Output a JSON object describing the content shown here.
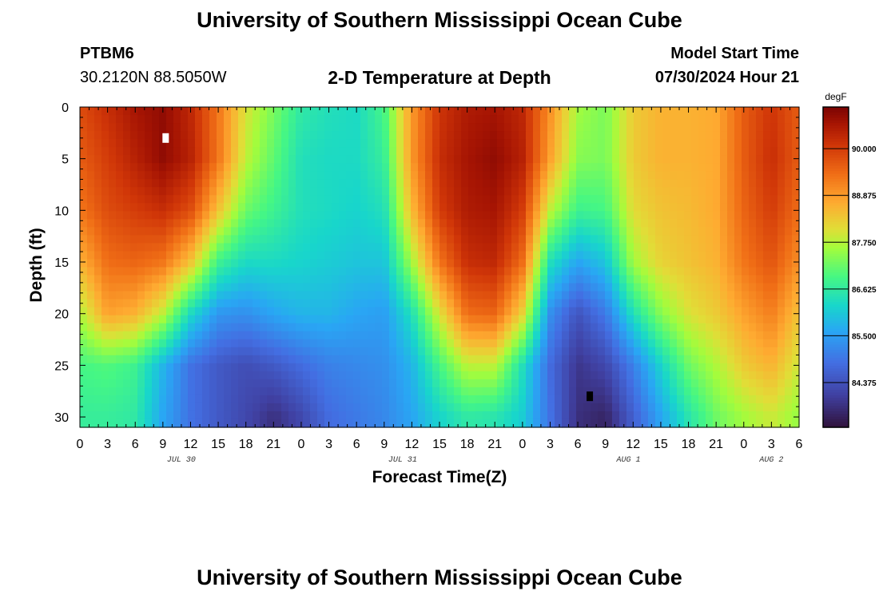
{
  "header": {
    "title": "University of Southern Mississippi Ocean Cube",
    "station_id": "PTBM6",
    "station_coords": "30.2120N  88.5050W",
    "subtitle": "2-D Temperature at Depth",
    "model_start_label": "Model Start Time",
    "model_start_value": "07/30/2024 Hour 21"
  },
  "footer": {
    "title": "University of Southern Mississippi Ocean Cube"
  },
  "chart_data": {
    "type": "heatmap",
    "title": "2-D Temperature at Depth",
    "xlabel": "Forecast Time(Z)",
    "ylabel": "Depth (ft)",
    "x_range_hours": [
      0,
      78
    ],
    "y_range_ft": [
      0,
      31
    ],
    "y_inverted": true,
    "x_tick_labels": [
      "0",
      "3",
      "6",
      "9",
      "12",
      "15",
      "18",
      "21",
      "0",
      "3",
      "6",
      "9",
      "12",
      "15",
      "18",
      "21",
      "0",
      "3",
      "6",
      "9",
      "12",
      "15",
      "18",
      "21",
      "0",
      "3",
      "6"
    ],
    "y_tick_labels": [
      "0",
      "5",
      "10",
      "15",
      "20",
      "25",
      "30"
    ],
    "y_tick_values": [
      0,
      5,
      10,
      15,
      20,
      25,
      30
    ],
    "date_labels": [
      {
        "text": "JUL 30",
        "hour": 11
      },
      {
        "text": "JUL 31",
        "hour": 35
      },
      {
        "text": "AUG 1",
        "hour": 59.5
      },
      {
        "text": "AUG 2",
        "hour": 75
      }
    ],
    "colorbar": {
      "unit": "degF",
      "min": 83.3,
      "max": 91.0,
      "tick_labels": [
        "84.375",
        "85.500",
        "86.625",
        "87.750",
        "88.875",
        "90.000"
      ],
      "tick_values": [
        84.375,
        85.5,
        86.625,
        87.75,
        88.875,
        90.0
      ]
    },
    "extrema_markers": [
      {
        "kind": "max",
        "hour": 9.3,
        "depth_ft": 3.0,
        "color": "#ffffff"
      },
      {
        "kind": "min",
        "hour": 55.3,
        "depth_ft": 28.0,
        "color": "#000000"
      }
    ],
    "time_hours": [
      0,
      3,
      6,
      9,
      12,
      15,
      18,
      21,
      24,
      27,
      30,
      33,
      36,
      39,
      42,
      45,
      48,
      51,
      54,
      57,
      60,
      63,
      66,
      69,
      72,
      75,
      78
    ],
    "depth_ft": [
      0,
      5,
      10,
      15,
      20,
      25,
      30
    ],
    "temperature_degF": [
      [
        89.8,
        90.2,
        90.6,
        90.8,
        90.3,
        89.3,
        88.0,
        87.3,
        86.6,
        86.4,
        86.3,
        86.9,
        88.9,
        90.1,
        90.5,
        90.6,
        90.3,
        89.0,
        87.6,
        87.3,
        88.3,
        88.6,
        88.6,
        88.7,
        89.6,
        90.1,
        89.6
      ],
      [
        89.6,
        90.0,
        90.4,
        90.8,
        90.4,
        89.3,
        87.8,
        87.1,
        86.4,
        86.3,
        86.3,
        86.7,
        88.9,
        90.2,
        90.6,
        90.8,
        90.4,
        88.8,
        87.4,
        87.3,
        88.3,
        88.6,
        88.6,
        88.7,
        89.6,
        90.2,
        89.6
      ],
      [
        89.3,
        89.8,
        90.0,
        90.2,
        89.8,
        88.4,
        87.2,
        86.8,
        86.4,
        86.3,
        86.2,
        86.4,
        88.5,
        90.0,
        90.5,
        90.6,
        90.0,
        87.8,
        86.8,
        86.9,
        88.1,
        88.4,
        88.5,
        88.7,
        89.5,
        90.0,
        89.4
      ],
      [
        88.6,
        89.4,
        89.5,
        89.3,
        88.4,
        86.8,
        86.3,
        86.3,
        86.2,
        86.1,
        86.0,
        86.0,
        87.6,
        89.3,
        90.2,
        90.3,
        89.4,
        86.4,
        85.6,
        86.0,
        87.6,
        88.2,
        88.4,
        88.6,
        89.3,
        89.7,
        89.0
      ],
      [
        87.7,
        88.8,
        88.6,
        87.8,
        86.3,
        85.4,
        85.3,
        85.6,
        85.8,
        85.8,
        85.6,
        85.5,
        86.4,
        88.0,
        89.4,
        89.5,
        88.2,
        85.3,
        84.4,
        85.0,
        86.4,
        87.4,
        88.0,
        88.3,
        88.8,
        89.2,
        88.4
      ],
      [
        86.9,
        87.0,
        86.8,
        85.8,
        84.9,
        84.5,
        84.3,
        84.5,
        84.8,
        85.1,
        85.2,
        85.3,
        85.8,
        86.9,
        87.8,
        87.8,
        86.4,
        84.8,
        83.9,
        84.2,
        85.1,
        86.2,
        87.2,
        87.7,
        88.3,
        88.6,
        87.9
      ],
      [
        86.7,
        86.7,
        86.6,
        85.6,
        84.9,
        84.5,
        84.2,
        83.8,
        84.2,
        84.8,
        85.0,
        85.2,
        85.6,
        86.2,
        86.6,
        86.5,
        86.1,
        84.9,
        83.8,
        83.6,
        84.6,
        85.6,
        86.5,
        87.2,
        87.6,
        87.9,
        87.5
      ]
    ]
  }
}
